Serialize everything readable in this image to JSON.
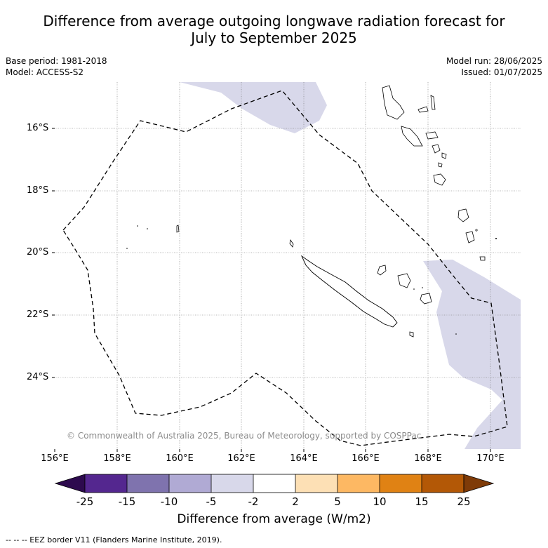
{
  "title_line1": "Difference from average outgoing longwave radiation forecast for",
  "title_line2": "July to September 2025",
  "meta_left": {
    "base_period": "Base period: 1981-2018",
    "model": "Model: ACCESS-S2"
  },
  "meta_right": {
    "model_run": "Model run: 28/06/2025",
    "issued": "Issued: 01/07/2025"
  },
  "map": {
    "latitude_labels": [
      "16°S",
      "18°S",
      "20°S",
      "22°S",
      "24°S"
    ],
    "longitude_labels": [
      "156°E",
      "158°E",
      "160°E",
      "162°E",
      "164°E",
      "166°E",
      "168°E",
      "170°E"
    ],
    "extent": {
      "lon": [
        156,
        171
      ],
      "lat": [
        -14.5,
        -26.3
      ]
    },
    "anomaly_fill_color": "#d8d8ea",
    "grid": true,
    "copyright": "© Commonwealth of Australia 2025, Bureau of Meteorology, supported by COSPPac"
  },
  "colorbar": {
    "ticks": [
      "-25",
      "-15",
      "-10",
      "-5",
      "-2",
      "2",
      "5",
      "10",
      "15",
      "25"
    ],
    "colors": [
      "#2d0a4e",
      "#54278f",
      "#7f73ae",
      "#b0aad4",
      "#d8d8ea",
      "#ffffff",
      "#fde0b5",
      "#fdb863",
      "#e08214",
      "#b35806",
      "#7f3b08"
    ],
    "label": "Difference from average (W/m2)"
  },
  "footer": "--  --  -- EEZ border V11 (Flanders Marine Institute, 2019)."
}
